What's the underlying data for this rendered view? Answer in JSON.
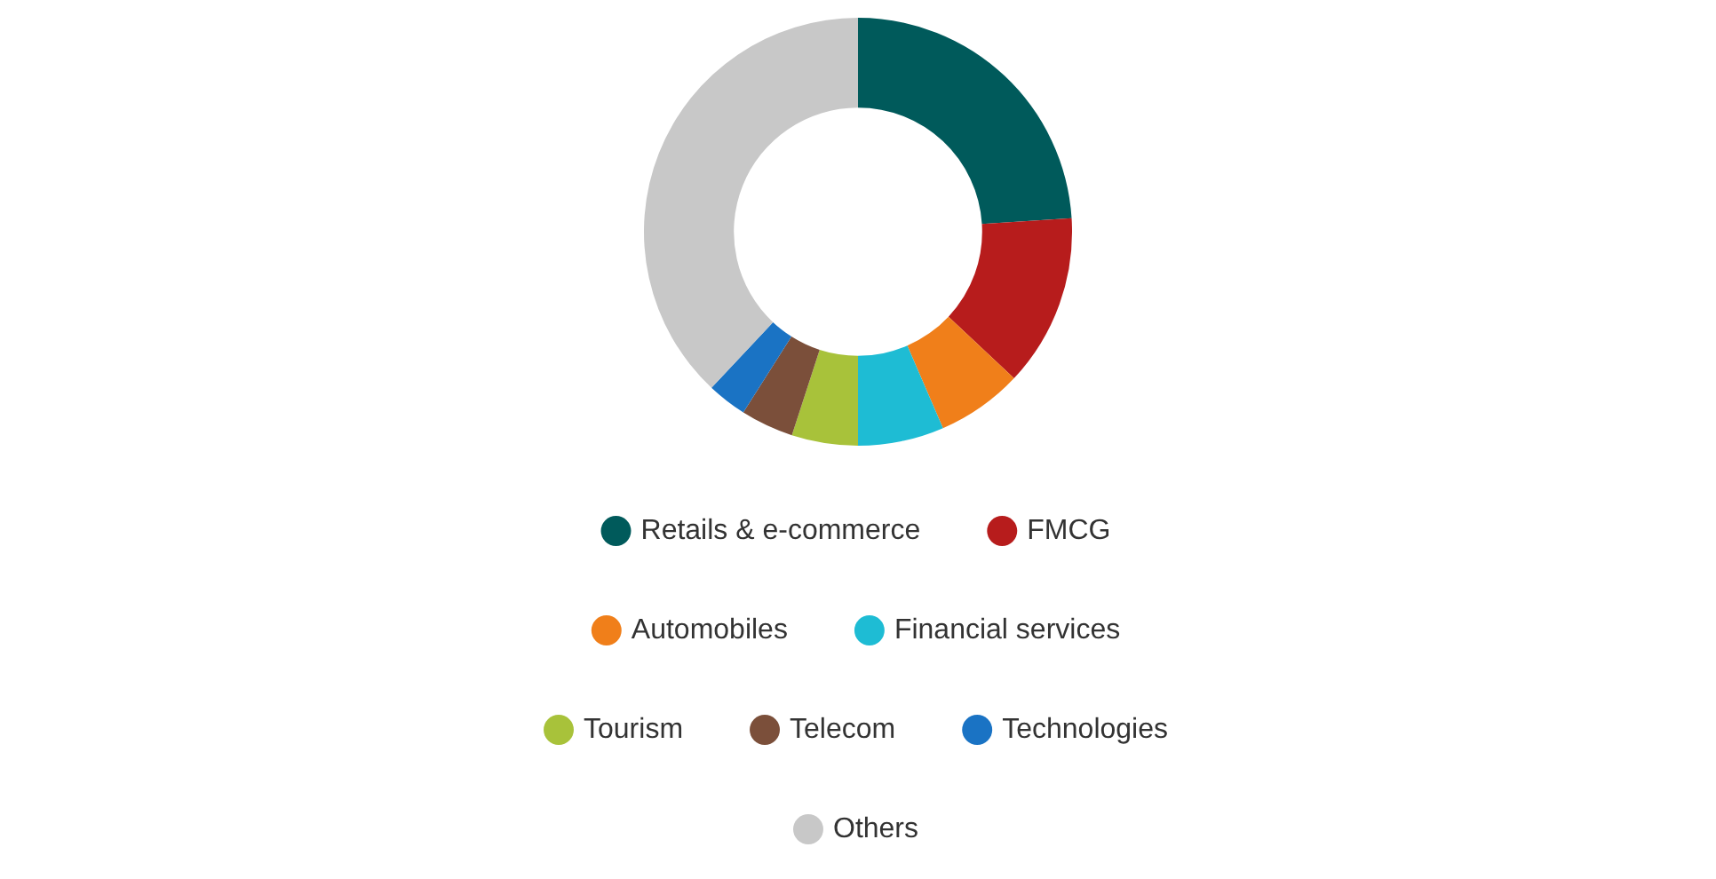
{
  "chart_data": {
    "type": "donut",
    "categories": [
      "Retails & e-commerce",
      "FMCG",
      "Automobiles",
      "Financial services",
      "Tourism",
      "Telecom",
      "Technologies",
      "Others"
    ],
    "values": [
      24,
      13,
      6.5,
      6.5,
      5,
      4,
      3,
      38
    ],
    "colors": [
      "#005a5b",
      "#b71c1c",
      "#f07f1a",
      "#1ebcd4",
      "#a8c23a",
      "#7b4f3a",
      "#1a73c4",
      "#c8c8c8"
    ],
    "legend": "bottom"
  }
}
